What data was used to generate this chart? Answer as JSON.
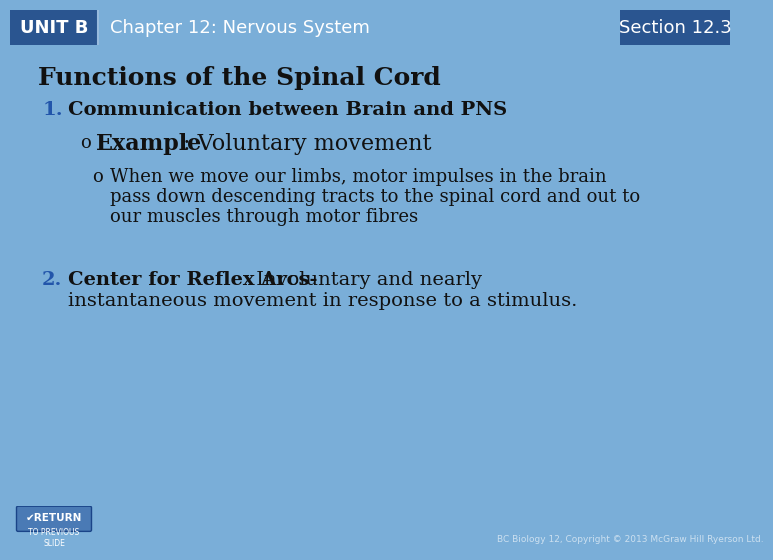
{
  "header_bg": "#5b8ec4",
  "header_text_color": "#ffffff",
  "unit_label": "UNIT B",
  "chapter_title": "Chapter 12: Nervous System",
  "section_label": "Section 12.3",
  "slide_bg": "#ffffff",
  "outer_bg": "#7aaed8",
  "title": "Functions of the Spinal Cord",
  "title_color": "#111111",
  "item1_number": "1.",
  "item1_text": "Communication between Brain and PNS",
  "example_bullet": "o",
  "example_bold": "Example",
  "example_rest": ": Voluntary movement",
  "sub_bullet": "o",
  "sub_text_line1": "When we move our limbs, motor impulses in the brain",
  "sub_text_line2": "pass down descending tracts to the spinal cord and out to",
  "sub_text_line3": "our muscles through motor fibres",
  "item2_number": "2.",
  "item2_bold": "Center for Reflex Arcs-",
  "item2_rest_line1": " Involuntary and nearly",
  "item2_rest_line2": "instantaneous movement in response to a stimulus.",
  "return_btn_color": "#4a7ab5",
  "return_btn_text": "✔RETURN",
  "to_prev_text": "TO PREVIOUS\nSLIDE",
  "footer_text": "BC Biology 12, Copyright © 2013 McGraw Hill Ryerson Ltd.",
  "footer_color": "#cce0f0",
  "content_text_color": "#111111",
  "number_color": "#2255aa",
  "body_font_size": 13,
  "header_font_size": 13,
  "title_font_size": 18,
  "unit_box_color": "#2a5590",
  "section_box_color": "#2a5590",
  "header_mid_color": "#5b8ec4",
  "divider_color": "#aabbcc"
}
